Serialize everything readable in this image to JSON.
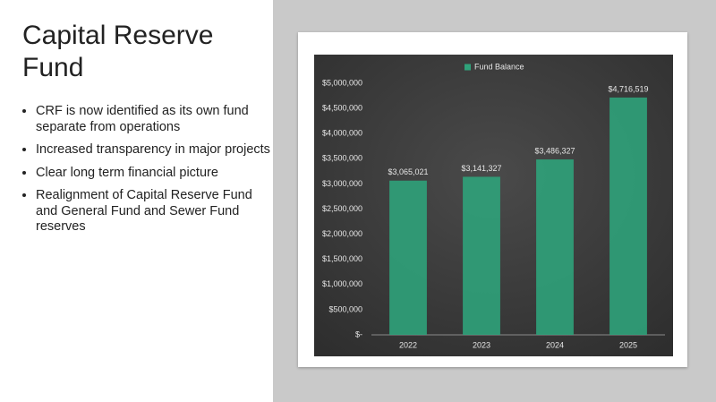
{
  "slide": {
    "title": "Capital Reserve Fund",
    "bullets": [
      "CRF is now identified as its own fund separate from operations",
      "Increased transparency in major projects",
      "Clear long term financial picture",
      "Realignment of Capital Reserve Fund and General Fund and Sewer Fund reserves"
    ]
  },
  "chart_data": {
    "type": "bar",
    "categories": [
      "2022",
      "2023",
      "2024",
      "2025"
    ],
    "series": [
      {
        "name": "Fund Balance",
        "color": "#2fa27a",
        "values": [
          3065021,
          3141327,
          3486327,
          4716519
        ],
        "value_labels": [
          "$3,065,021",
          "$3,141,327",
          "$3,486,327",
          "$4,716,519"
        ]
      }
    ],
    "ylim": [
      0,
      5000000
    ],
    "yticks": [
      {
        "value": 0,
        "label": "$-"
      },
      {
        "value": 500000,
        "label": "$500,000"
      },
      {
        "value": 1000000,
        "label": "$1,000,000"
      },
      {
        "value": 1500000,
        "label": "$1,500,000"
      },
      {
        "value": 2000000,
        "label": "$2,000,000"
      },
      {
        "value": 2500000,
        "label": "$2,500,000"
      },
      {
        "value": 3000000,
        "label": "$3,000,000"
      },
      {
        "value": 3500000,
        "label": "$3,500,000"
      },
      {
        "value": 4000000,
        "label": "$4,000,000"
      },
      {
        "value": 4500000,
        "label": "$4,500,000"
      },
      {
        "value": 5000000,
        "label": "$5,000,000"
      }
    ],
    "grid": false,
    "legend": "top"
  }
}
